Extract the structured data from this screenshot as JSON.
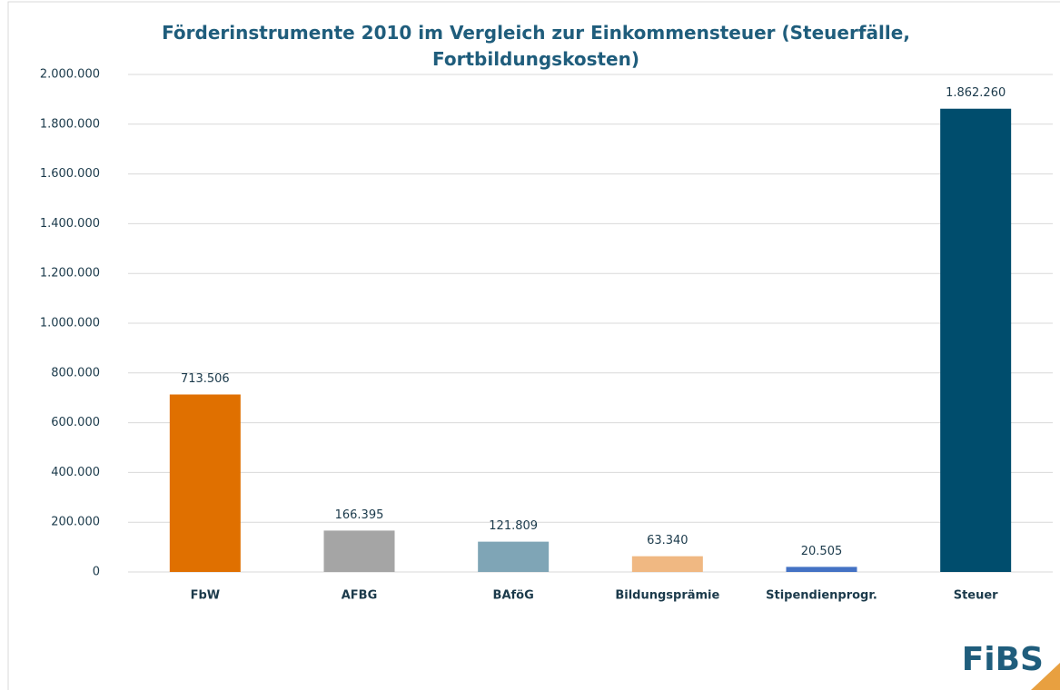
{
  "chart_data": {
    "type": "bar",
    "title": "Förderinstrumente 2010 im Vergleich zur Einkommensteuer (Steuerfälle, Fortbildungskosten)",
    "categories": [
      "FbW",
      "AFBG",
      "BAföG",
      "Bildungsprämie",
      "Stipendienprogr.",
      "Steuer"
    ],
    "values": [
      713506,
      166395,
      121809,
      63340,
      20505,
      1862260
    ],
    "value_labels": [
      "713.506",
      "166.395",
      "121.809",
      "63.340",
      "20.505",
      "1.862.260"
    ],
    "colors": [
      "#e07000",
      "#a5a5a5",
      "#7fa5b6",
      "#f0b882",
      "#4472c4",
      "#004d6d"
    ],
    "ylim": [
      0,
      2000000
    ],
    "yticks": [
      0,
      {
        "value": 200000,
        "label": "200.000"
      },
      {
        "value": 400000,
        "label": "400.000"
      },
      {
        "value": 600000,
        "label": "600.000"
      },
      {
        "value": 800000,
        "label": "800.000"
      },
      {
        "value": 1000000,
        "label": "1.000.000"
      },
      {
        "value": 1200000,
        "label": "1.200.000"
      },
      {
        "value": 1400000,
        "label": "1.400.000"
      },
      {
        "value": 1600000,
        "label": "1.600.000"
      },
      {
        "value": 1800000,
        "label": "1.800.000"
      },
      {
        "value": 2000000,
        "label": "2.000.000"
      }
    ],
    "grid": true
  },
  "logo": "FiBS"
}
